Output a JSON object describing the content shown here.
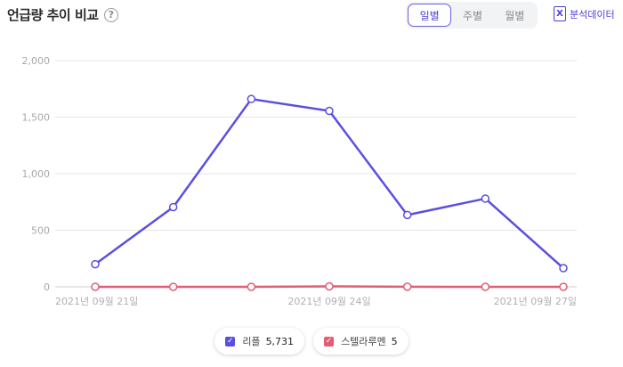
{
  "header": {
    "title": "언급량 추이 비교",
    "help_icon": "?",
    "tabs": [
      {
        "label": "일별",
        "active": true
      },
      {
        "label": "주별",
        "active": false
      },
      {
        "label": "월별",
        "active": false
      }
    ],
    "export_label": "분석데이터",
    "export_icon_glyph": "X"
  },
  "chart_data": {
    "type": "line",
    "x": [
      "2021-09-21",
      "2021-09-22",
      "2021-09-23",
      "2021-09-24",
      "2021-09-25",
      "2021-09-26",
      "2021-09-27"
    ],
    "x_tick_labels": [
      {
        "index": 0,
        "label": "2021년 09월 21일"
      },
      {
        "index": 3,
        "label": "2021년 09월 24일"
      },
      {
        "index": 6,
        "label": "2021년 09월 27일"
      }
    ],
    "ylim": [
      0,
      2000
    ],
    "y_ticks": [
      0,
      500,
      1000,
      1500,
      2000
    ],
    "y_tick_labels": [
      "0",
      "500",
      "1,000",
      "1,500",
      "2,000"
    ],
    "grid": true,
    "legend_position": "bottom-center",
    "series": [
      {
        "name": "리플",
        "total": "5,731",
        "color": "#5b4fe0",
        "values": [
          200,
          705,
          1660,
          1555,
          635,
          780,
          165
        ]
      },
      {
        "name": "스텔라루멘",
        "total": "5",
        "color": "#e35d76",
        "values": [
          0,
          0,
          0,
          4,
          1,
          0,
          0
        ]
      }
    ]
  }
}
